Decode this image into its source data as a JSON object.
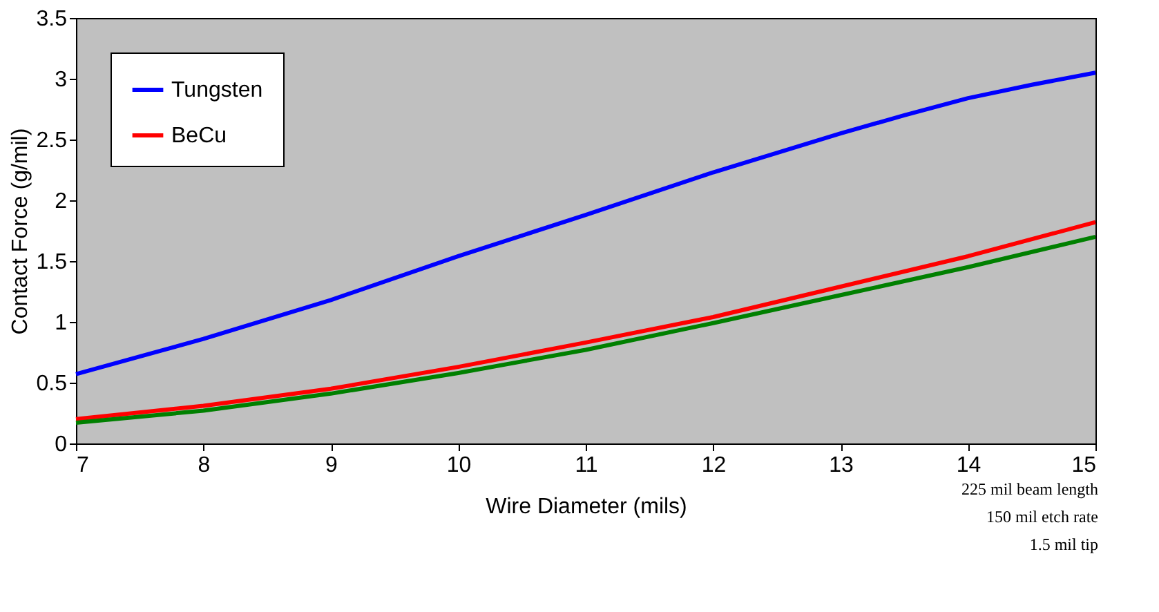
{
  "chart_data": {
    "type": "line",
    "xlabel": "Wire Diameter (mils)",
    "ylabel": "Contact Force (g/mil)",
    "xlim": [
      7,
      15
    ],
    "xticks": [
      7,
      8,
      9,
      10,
      11,
      12,
      13,
      14,
      15
    ],
    "ylim": [
      0,
      3.5
    ],
    "yticks": [
      0,
      0.5,
      1,
      1.5,
      2,
      2.5,
      3,
      3.5
    ],
    "grid": false,
    "legend": "top left",
    "marker": "none",
    "line_style": "solid",
    "series": [
      {
        "name": "Tungsten",
        "color": "#0000ff",
        "x": [
          7,
          8,
          9,
          10,
          11,
          12,
          13,
          13.5,
          14,
          14.5,
          15
        ],
        "values": [
          0.57,
          0.86,
          1.18,
          1.54,
          1.88,
          2.23,
          2.55,
          2.7,
          2.84,
          2.95,
          3.05
        ]
      },
      {
        "name": "BeCu",
        "color": "#ff0000",
        "x": [
          7,
          8,
          9,
          10,
          11,
          12,
          13,
          14,
          15
        ],
        "values": [
          0.2,
          0.31,
          0.45,
          0.63,
          0.83,
          1.04,
          1.29,
          1.54,
          1.82
        ]
      },
      {
        "color": "#008000",
        "x": [
          7,
          8,
          9,
          10,
          11,
          12,
          13,
          14,
          15
        ],
        "values": [
          0.17,
          0.27,
          0.41,
          0.58,
          0.77,
          0.99,
          1.22,
          1.45,
          1.7
        ]
      }
    ],
    "annotations": [
      "225 mil beam length",
      "150 mil etch rate",
      "1.5 mil tip"
    ]
  }
}
